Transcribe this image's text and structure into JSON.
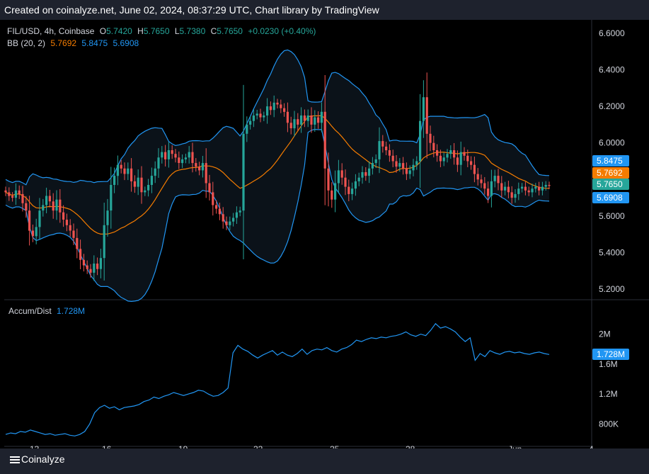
{
  "header": {
    "caption": "Created on coinalyze.net, June 02, 2024, 08:37:29 UTC, Chart library by TradingView"
  },
  "footer": {
    "brand": "Coinalyze"
  },
  "legend": {
    "symbol": "FIL/USD, 4h, Coinbase",
    "o_label": "O",
    "o_value": "5.7420",
    "h_label": "H",
    "h_value": "5.7650",
    "l_label": "L",
    "l_value": "5.7380",
    "c_label": "C",
    "c_value": "5.7650",
    "change": "+0.0230 (+0.40%)",
    "bb_label": "BB (20, 2)",
    "bb_basis": "5.7692",
    "bb_upper": "5.8475",
    "bb_lower": "5.6908",
    "ad_label": "Accum/Dist",
    "ad_value": "1.728M"
  },
  "colors": {
    "up": "#26a69a",
    "down": "#ef5350",
    "bb_basis": "#f57c00",
    "bb_band": "#2196f3",
    "ad_line": "#2196f3",
    "bb_fill": "#0b1219"
  },
  "price_tags": [
    {
      "text": "5.8475",
      "value": 5.8475,
      "color": "#2196f3"
    },
    {
      "text": "5.7692",
      "value": 5.7692,
      "color": "#f57c00"
    },
    {
      "text": "5.7650",
      "value": 5.765,
      "color": "#26a69a"
    },
    {
      "text": "5.6908",
      "value": 5.6908,
      "color": "#2196f3"
    }
  ],
  "ad_tag": {
    "text": "1.728M",
    "value": 1.728,
    "color": "#2196f3"
  },
  "chart_data": [
    {
      "type": "candlestick",
      "title": "FIL/USD, 4h, Coinbase",
      "ylim": [
        5.15,
        6.65
      ],
      "yticks": [
        5.2,
        5.4,
        5.6,
        5.8,
        6.0,
        6.2,
        6.4,
        6.6
      ],
      "ytick_labels": [
        "5.2000",
        "5.4000",
        "5.6000",
        "5.8000",
        "6.0000",
        "6.2000",
        "6.4000",
        "6.6000"
      ],
      "xticks": [
        "13",
        "16",
        "19",
        "22",
        "25",
        "28",
        "Jun",
        "4"
      ],
      "grid": false,
      "close": [
        5.73,
        5.71,
        5.7,
        5.74,
        5.72,
        5.67,
        5.63,
        5.52,
        5.49,
        5.54,
        5.63,
        5.66,
        5.71,
        5.68,
        5.63,
        5.69,
        5.62,
        5.58,
        5.55,
        5.52,
        5.48,
        5.42,
        5.36,
        5.33,
        5.31,
        5.29,
        5.34,
        5.31,
        5.37,
        5.55,
        5.63,
        5.77,
        5.82,
        5.88,
        5.86,
        5.83,
        5.86,
        5.79,
        5.76,
        5.81,
        5.73,
        5.74,
        5.77,
        5.82,
        5.86,
        5.92,
        5.95,
        5.91,
        5.96,
        5.94,
        5.92,
        5.89,
        5.91,
        5.92,
        5.95,
        5.89,
        5.87,
        5.85,
        5.89,
        5.78,
        5.73,
        5.66,
        5.64,
        5.61,
        5.57,
        5.55,
        5.57,
        5.59,
        5.62,
        5.63,
        6.05,
        6.1,
        6.12,
        6.15,
        6.16,
        6.14,
        6.15,
        6.2,
        6.18,
        6.22,
        6.21,
        6.19,
        6.17,
        6.11,
        6.08,
        6.13,
        6.1,
        6.15,
        6.12,
        6.15,
        6.1,
        6.14,
        6.11,
        6.17,
        5.86,
        5.74,
        5.69,
        5.78,
        5.85,
        5.81,
        5.76,
        5.72,
        5.75,
        5.79,
        5.81,
        5.84,
        5.82,
        5.86,
        5.89,
        5.91,
        6.01,
        5.98,
        5.96,
        5.93,
        5.9,
        5.87,
        5.89,
        5.86,
        5.83,
        5.85,
        5.88,
        5.9,
        6.12,
        6.25,
        6.05,
        6.0,
        5.96,
        5.93,
        5.9,
        5.92,
        5.94,
        5.96,
        5.92,
        5.88,
        5.95,
        5.93,
        5.9,
        5.88,
        5.83,
        5.8,
        5.78,
        5.75,
        5.71,
        5.79,
        5.82,
        5.78,
        5.74,
        5.76,
        5.73,
        5.7,
        5.72,
        5.75,
        5.76,
        5.74,
        5.73,
        5.75,
        5.76,
        5.74,
        5.76,
        5.77,
        5.765
      ],
      "high_low": "wick lengths approximated"
    },
    {
      "type": "line",
      "title": "Accum/Dist",
      "ylim": [
        0.52,
        2.45
      ],
      "yticks": [
        0.8,
        1.2,
        1.6,
        2.0
      ],
      "ytick_labels": [
        "800K",
        "1.2M",
        "1.6M",
        "2M"
      ],
      "values": [
        0.66,
        0.68,
        0.67,
        0.7,
        0.69,
        0.72,
        0.7,
        0.68,
        0.66,
        0.67,
        0.65,
        0.66,
        0.67,
        0.65,
        0.64,
        0.66,
        0.7,
        0.8,
        0.95,
        1.02,
        1.05,
        1.01,
        1.03,
        0.99,
        1.02,
        1.03,
        1.04,
        1.06,
        1.1,
        1.12,
        1.16,
        1.14,
        1.17,
        1.19,
        1.22,
        1.2,
        1.18,
        1.2,
        1.22,
        1.25,
        1.24,
        1.2,
        1.17,
        1.18,
        1.22,
        1.28,
        1.75,
        1.85,
        1.8,
        1.77,
        1.72,
        1.68,
        1.72,
        1.75,
        1.78,
        1.72,
        1.76,
        1.72,
        1.7,
        1.74,
        1.8,
        1.73,
        1.78,
        1.8,
        1.79,
        1.82,
        1.78,
        1.76,
        1.8,
        1.82,
        1.86,
        1.92,
        1.9,
        1.93,
        1.95,
        1.94,
        1.96,
        1.95,
        1.97,
        1.98,
        2.0,
        2.03,
        1.99,
        1.97,
        2.0,
        1.98,
        2.05,
        2.14,
        2.08,
        2.1,
        2.07,
        2.03,
        1.96,
        1.9,
        1.95,
        1.65,
        1.74,
        1.7,
        1.78,
        1.75,
        1.73,
        1.76,
        1.77,
        1.75,
        1.76,
        1.74,
        1.73,
        1.75,
        1.76,
        1.74,
        1.728
      ]
    }
  ]
}
